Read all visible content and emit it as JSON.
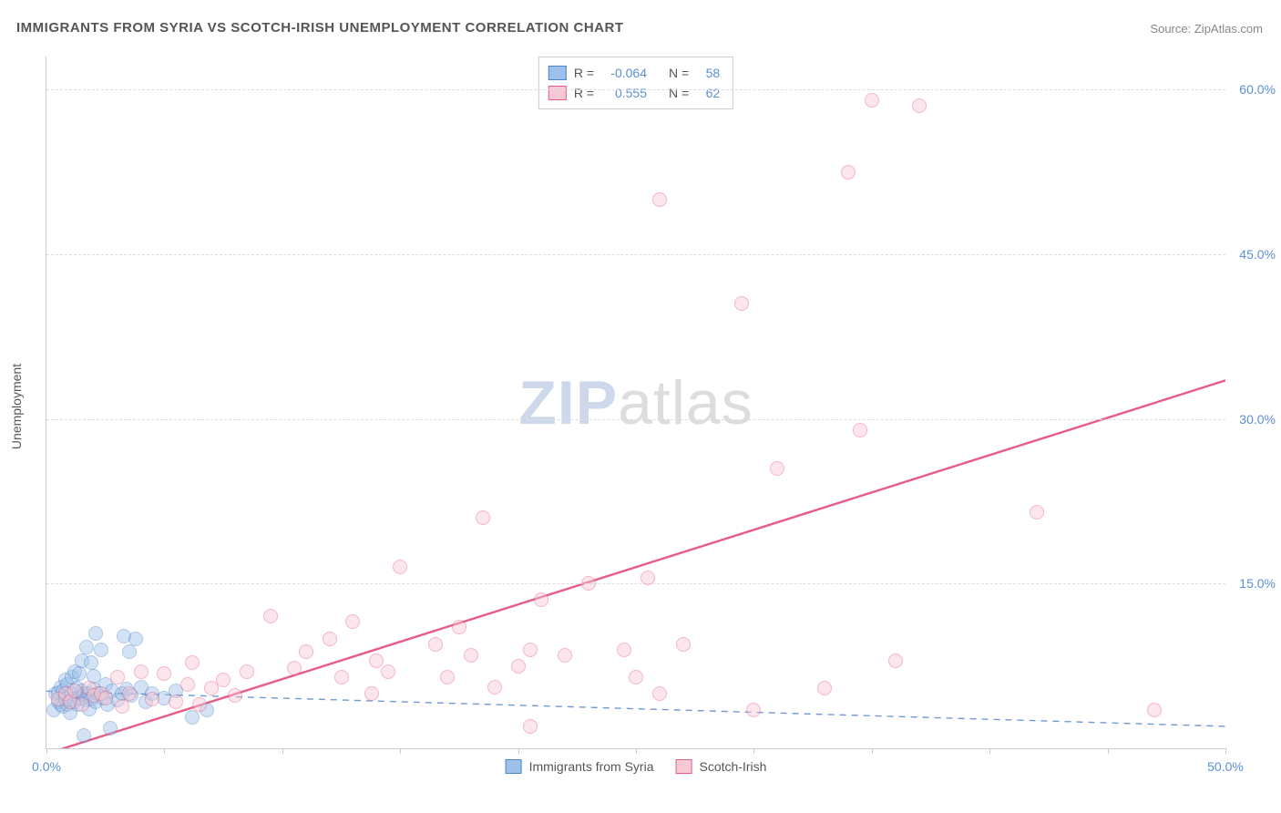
{
  "title": "IMMIGRANTS FROM SYRIA VS SCOTCH-IRISH UNEMPLOYMENT CORRELATION CHART",
  "source_label": "Source:",
  "source_name": "ZipAtlas.com",
  "ylabel": "Unemployment",
  "watermark_a": "ZIP",
  "watermark_b": "atlas",
  "chart": {
    "type": "scatter",
    "xlim": [
      0,
      50
    ],
    "ylim": [
      0,
      63
    ],
    "xtick_labels": {
      "0": "0.0%",
      "50": "50.0%"
    },
    "xtick_positions": [
      0,
      5,
      10,
      15,
      20,
      25,
      30,
      35,
      40,
      45,
      50
    ],
    "ytick_positions": [
      15,
      30,
      45,
      60
    ],
    "ytick_labels": {
      "15": "15.0%",
      "30": "30.0%",
      "45": "45.0%",
      "60": "60.0%"
    },
    "grid_color": "#dddddd",
    "axis_color": "#cccccc",
    "background_color": "#ffffff",
    "marker_radius": 8,
    "marker_opacity": 0.45,
    "marker_border_width": 1.3
  },
  "series": [
    {
      "id": "syria",
      "label": "Immigrants from Syria",
      "fill_color": "#9ec1ea",
      "border_color": "#4f86c6",
      "R": "-0.064",
      "N": "58",
      "trend": {
        "y_at_x0": 5.2,
        "y_at_xmax": 2.0,
        "color": "#6f9bd1",
        "width": 1.4,
        "dashed": true
      },
      "points": [
        [
          0.3,
          3.5
        ],
        [
          0.4,
          5.0
        ],
        [
          0.5,
          4.2
        ],
        [
          0.5,
          5.1
        ],
        [
          0.6,
          4.0
        ],
        [
          0.6,
          5.6
        ],
        [
          0.7,
          3.8
        ],
        [
          0.7,
          5.2
        ],
        [
          0.8,
          4.5
        ],
        [
          0.8,
          6.2
        ],
        [
          0.9,
          4.0
        ],
        [
          0.9,
          5.8
        ],
        [
          1.0,
          4.4
        ],
        [
          1.0,
          3.2
        ],
        [
          1.1,
          5.0
        ],
        [
          1.1,
          6.5
        ],
        [
          1.2,
          4.2
        ],
        [
          1.2,
          7.0
        ],
        [
          1.3,
          5.5
        ],
        [
          1.3,
          4.0
        ],
        [
          1.4,
          6.8
        ],
        [
          1.4,
          4.6
        ],
        [
          1.5,
          5.2
        ],
        [
          1.5,
          8.0
        ],
        [
          1.6,
          4.8
        ],
        [
          1.6,
          5.0
        ],
        [
          1.7,
          4.4
        ],
        [
          1.7,
          9.2
        ],
        [
          1.8,
          5.0
        ],
        [
          1.8,
          3.6
        ],
        [
          1.9,
          7.8
        ],
        [
          1.9,
          4.5
        ],
        [
          2.0,
          5.4
        ],
        [
          2.0,
          6.6
        ],
        [
          2.1,
          10.5
        ],
        [
          2.1,
          4.2
        ],
        [
          2.2,
          5.0
        ],
        [
          2.3,
          9.0
        ],
        [
          2.4,
          4.6
        ],
        [
          2.5,
          5.8
        ],
        [
          2.6,
          4.0
        ],
        [
          2.8,
          5.2
        ],
        [
          3.0,
          4.4
        ],
        [
          3.2,
          5.0
        ],
        [
          3.3,
          10.2
        ],
        [
          3.4,
          5.4
        ],
        [
          3.5,
          8.8
        ],
        [
          3.6,
          4.8
        ],
        [
          3.8,
          10.0
        ],
        [
          4.0,
          5.6
        ],
        [
          4.2,
          4.2
        ],
        [
          4.5,
          5.0
        ],
        [
          2.7,
          1.8
        ],
        [
          1.6,
          1.2
        ],
        [
          5.0,
          4.6
        ],
        [
          5.5,
          5.2
        ],
        [
          6.2,
          2.8
        ],
        [
          6.8,
          3.5
        ]
      ]
    },
    {
      "id": "scotch_irish",
      "label": "Scotch-Irish",
      "fill_color": "#f7c9d4",
      "border_color": "#e75c87",
      "R": "0.555",
      "N": "62",
      "trend": {
        "y_at_x0": -0.5,
        "y_at_xmax": 33.5,
        "color": "#e75c87",
        "width": 2.4,
        "dashed": false
      },
      "points": [
        [
          0.5,
          4.5
        ],
        [
          0.8,
          5.0
        ],
        [
          1.0,
          4.2
        ],
        [
          1.2,
          5.2
        ],
        [
          1.5,
          4.0
        ],
        [
          1.8,
          5.5
        ],
        [
          2.0,
          4.8
        ],
        [
          2.3,
          5.0
        ],
        [
          2.5,
          4.6
        ],
        [
          3.0,
          6.5
        ],
        [
          3.2,
          3.8
        ],
        [
          3.5,
          5.0
        ],
        [
          4.0,
          7.0
        ],
        [
          4.5,
          4.5
        ],
        [
          5.0,
          6.8
        ],
        [
          5.5,
          4.2
        ],
        [
          6.0,
          5.8
        ],
        [
          6.2,
          7.8
        ],
        [
          6.5,
          4.0
        ],
        [
          7.0,
          5.5
        ],
        [
          7.5,
          6.2
        ],
        [
          8.0,
          4.8
        ],
        [
          8.5,
          7.0
        ],
        [
          9.5,
          12.0
        ],
        [
          10.5,
          7.3
        ],
        [
          11.0,
          8.8
        ],
        [
          12.0,
          10.0
        ],
        [
          12.5,
          6.5
        ],
        [
          13.0,
          11.5
        ],
        [
          14.0,
          8.0
        ],
        [
          14.5,
          7.0
        ],
        [
          13.8,
          5.0
        ],
        [
          15.0,
          16.5
        ],
        [
          16.5,
          9.5
        ],
        [
          17.0,
          6.5
        ],
        [
          17.5,
          11.0
        ],
        [
          18.0,
          8.5
        ],
        [
          18.5,
          21.0
        ],
        [
          19.0,
          5.6
        ],
        [
          20.0,
          7.5
        ],
        [
          20.5,
          2.0
        ],
        [
          21.0,
          13.5
        ],
        [
          22.0,
          8.5
        ],
        [
          23.0,
          15.0
        ],
        [
          24.5,
          9.0
        ],
        [
          25.0,
          6.5
        ],
        [
          25.5,
          15.5
        ],
        [
          26.0,
          5.0
        ],
        [
          27.0,
          9.5
        ],
        [
          29.5,
          40.5
        ],
        [
          30.0,
          3.5
        ],
        [
          31.0,
          25.5
        ],
        [
          33.0,
          5.5
        ],
        [
          34.5,
          29.0
        ],
        [
          36.0,
          8.0
        ],
        [
          34.0,
          52.5
        ],
        [
          35.0,
          59.0
        ],
        [
          37.0,
          58.5
        ],
        [
          42.0,
          21.5
        ],
        [
          47.0,
          3.5
        ],
        [
          26.0,
          50.0
        ],
        [
          20.5,
          9.0
        ]
      ]
    }
  ],
  "legend_stats_labels": {
    "R": "R =",
    "N": "N ="
  }
}
